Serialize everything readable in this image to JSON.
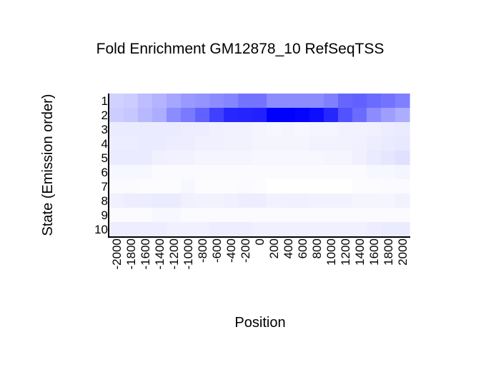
{
  "chart_data": {
    "type": "heatmap",
    "title": "Fold Enrichment GM12878_10 RefSeqTSS",
    "xlabel": "Position",
    "ylabel": "State (Emission order)",
    "x": [
      -2000,
      -1800,
      -1600,
      -1400,
      -1200,
      -1000,
      -800,
      -600,
      -400,
      -200,
      0,
      200,
      400,
      600,
      800,
      1000,
      1200,
      1400,
      1600,
      1800,
      2000
    ],
    "rows": [
      "1",
      "2",
      "3",
      "4",
      "5",
      "6",
      "7",
      "8",
      "9",
      "10"
    ],
    "x_tick_labels": [
      "-2000",
      "-1800",
      "-1600",
      "-1400",
      "-1200",
      "-1000",
      "-800",
      "-600",
      "-400",
      "-200",
      "0",
      "200",
      "400",
      "600",
      "800",
      "1000",
      "1200",
      "1400",
      "1600",
      "1800",
      "2000"
    ],
    "y_tick_labels": [
      "1",
      "2",
      "3",
      "4",
      "5",
      "6",
      "7",
      "8",
      "9",
      "10"
    ],
    "colormap": {
      "low": "#ffffff",
      "high": "#0000ff"
    },
    "values": [
      [
        0.18,
        0.2,
        0.26,
        0.3,
        0.35,
        0.4,
        0.42,
        0.45,
        0.48,
        0.55,
        0.55,
        0.45,
        0.45,
        0.45,
        0.45,
        0.5,
        0.6,
        0.62,
        0.58,
        0.55,
        0.5
      ],
      [
        0.2,
        0.22,
        0.28,
        0.32,
        0.45,
        0.52,
        0.62,
        0.75,
        0.85,
        0.86,
        0.87,
        1.0,
        1.0,
        0.98,
        0.95,
        0.85,
        0.68,
        0.58,
        0.45,
        0.38,
        0.32
      ],
      [
        0.08,
        0.08,
        0.08,
        0.08,
        0.08,
        0.07,
        0.07,
        0.06,
        0.05,
        0.05,
        0.04,
        0.03,
        0.04,
        0.03,
        0.04,
        0.04,
        0.05,
        0.05,
        0.06,
        0.07,
        0.08
      ],
      [
        0.07,
        0.07,
        0.08,
        0.08,
        0.07,
        0.07,
        0.06,
        0.06,
        0.05,
        0.05,
        0.04,
        0.04,
        0.04,
        0.04,
        0.05,
        0.05,
        0.05,
        0.06,
        0.07,
        0.08,
        0.09
      ],
      [
        0.08,
        0.08,
        0.08,
        0.06,
        0.05,
        0.05,
        0.04,
        0.04,
        0.04,
        0.04,
        0.03,
        0.03,
        0.03,
        0.03,
        0.03,
        0.04,
        0.04,
        0.06,
        0.08,
        0.1,
        0.12
      ],
      [
        0.03,
        0.03,
        0.03,
        0.02,
        0.02,
        0.02,
        0.02,
        0.02,
        0.02,
        0.02,
        0.02,
        0.02,
        0.02,
        0.02,
        0.02,
        0.02,
        0.02,
        0.02,
        0.03,
        0.03,
        0.04
      ],
      [
        0.02,
        0.02,
        0.01,
        0.01,
        0.01,
        0.03,
        0.01,
        0.01,
        0.01,
        0.02,
        0.01,
        0.0,
        0.0,
        0.0,
        0.0,
        0.0,
        0.0,
        0.01,
        0.01,
        0.02,
        0.02
      ],
      [
        0.06,
        0.07,
        0.07,
        0.08,
        0.08,
        0.06,
        0.05,
        0.05,
        0.06,
        0.07,
        0.07,
        0.05,
        0.06,
        0.06,
        0.05,
        0.05,
        0.05,
        0.04,
        0.04,
        0.04,
        0.05
      ],
      [
        0.02,
        0.02,
        0.02,
        0.03,
        0.03,
        0.02,
        0.02,
        0.02,
        0.02,
        0.02,
        0.02,
        0.02,
        0.02,
        0.02,
        0.02,
        0.02,
        0.02,
        0.02,
        0.02,
        0.02,
        0.02
      ],
      [
        0.07,
        0.07,
        0.07,
        0.07,
        0.06,
        0.06,
        0.06,
        0.07,
        0.07,
        0.07,
        0.06,
        0.06,
        0.06,
        0.06,
        0.06,
        0.06,
        0.06,
        0.06,
        0.07,
        0.08,
        0.08
      ]
    ]
  }
}
